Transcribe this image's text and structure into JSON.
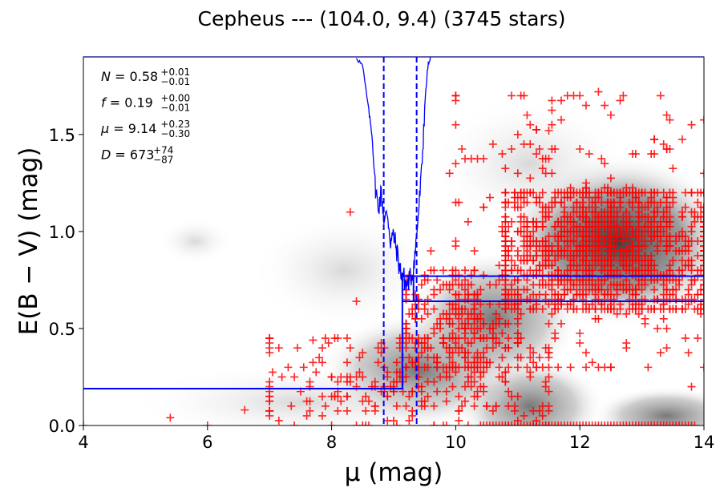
{
  "chart_data": {
    "type": "scatter",
    "title": "Cepheus --- (104.0, 9.4) (3745 stars)",
    "xlabel": "μ (mag)",
    "ylabel": "E(B − V) (mag)",
    "xlim": [
      4,
      14
    ],
    "ylim": [
      0,
      1.9
    ],
    "xticks": [
      4,
      6,
      8,
      10,
      12,
      14
    ],
    "xtick_labels": [
      "4",
      "6",
      "8",
      "10",
      "12",
      "14"
    ],
    "yticks": [
      0.0,
      0.5,
      1.0,
      1.5
    ],
    "ytick_labels": [
      "0.0",
      "0.5",
      "1.0",
      "1.5"
    ],
    "grid": false,
    "annotations": [
      {
        "symbol": "N",
        "value": "0.58",
        "plus": "+0.01",
        "minus": "−0.01"
      },
      {
        "symbol": "f",
        "value": "0.19",
        "plus": "+0.00",
        "minus": "−0.01"
      },
      {
        "symbol": "μ",
        "value": "9.14",
        "plus": "+0.23",
        "minus": "−0.30"
      },
      {
        "symbol": "D",
        "value": "673",
        "plus": "+74",
        "minus": "−87"
      }
    ],
    "annotation_location": "top-left",
    "background": "grayscale density map of stars (darkest around μ 11.5–13.5, E 0.7–1.1)",
    "series": [
      {
        "name": "stars",
        "kind": "scatter",
        "marker": "+",
        "color": "#ff0000",
        "count": 3745,
        "clusters": [
          {
            "mu_range": [
              10.8,
              14.0
            ],
            "ebv_range": [
              0.6,
              1.2
            ],
            "density": "very high"
          },
          {
            "mu_range": [
              10.0,
              14.0
            ],
            "ebv_range": [
              0.3,
              1.7
            ],
            "density": "medium"
          },
          {
            "mu_range": [
              7.0,
              11.5
            ],
            "ebv_range": [
              0.0,
              0.45
            ],
            "density": "medium"
          },
          {
            "mu_range": [
              9.2,
              11.0
            ],
            "ebv_range": [
              0.3,
              0.8
            ],
            "density": "medium"
          }
        ],
        "sample_points": [
          [
            5.4,
            0.04
          ],
          [
            7.7,
            0.44
          ],
          [
            8.4,
            0.64
          ],
          [
            8.3,
            1.1
          ],
          [
            10.0,
            1.55
          ],
          [
            10.9,
            1.7
          ],
          [
            12.3,
            1.72
          ],
          [
            12.1,
            1.65
          ],
          [
            13.4,
            1.6
          ],
          [
            11.5,
            1.52
          ],
          [
            9.9,
            1.3
          ],
          [
            9.6,
            0.9
          ],
          [
            11.2,
            0.35
          ],
          [
            12.5,
            0.3
          ],
          [
            13.8,
            0.2
          ],
          [
            7.3,
            0.3
          ],
          [
            6.6,
            0.08
          ],
          [
            4.0,
            0.0
          ],
          [
            6.0,
            0.0
          ],
          [
            9.0,
            0.2
          ],
          [
            10.5,
            0.1
          ],
          [
            13.9,
            0.45
          ]
        ]
      },
      {
        "name": "fitted extinction profile (lower)",
        "kind": "step",
        "color": "#0000ff",
        "points": [
          [
            4.0,
            0.19
          ],
          [
            9.14,
            0.19
          ],
          [
            9.14,
            0.77
          ],
          [
            14.0,
            0.77
          ]
        ]
      },
      {
        "name": "fitted extinction profile (upper)",
        "kind": "step",
        "color": "#0000ff",
        "points": [
          [
            9.14,
            0.64
          ],
          [
            9.32,
            0.64
          ],
          [
            9.32,
            0.77
          ]
        ],
        "extra_line": [
          [
            9.14,
            0.64
          ],
          [
            14.0,
            0.64
          ]
        ]
      },
      {
        "name": "distance modulus posterior",
        "kind": "line",
        "color": "#0000ff",
        "x": [
          8.4,
          8.5,
          8.6,
          8.65,
          8.7,
          8.75,
          8.8,
          8.85,
          8.9,
          8.95,
          9.0,
          9.05,
          9.1,
          9.15,
          9.2,
          9.25,
          9.3,
          9.35,
          9.4,
          9.45,
          9.5,
          9.55,
          9.6
        ],
        "y": [
          1.9,
          1.85,
          1.62,
          1.5,
          1.25,
          1.12,
          1.2,
          1.05,
          1.1,
          0.95,
          0.98,
          0.9,
          0.8,
          0.78,
          0.72,
          0.75,
          0.78,
          0.9,
          1.1,
          1.3,
          1.65,
          1.85,
          1.9
        ]
      },
      {
        "name": "mu confidence bounds",
        "kind": "vlines",
        "style": "dashed",
        "color": "#0000ff",
        "x": [
          8.84,
          9.37
        ]
      }
    ]
  }
}
